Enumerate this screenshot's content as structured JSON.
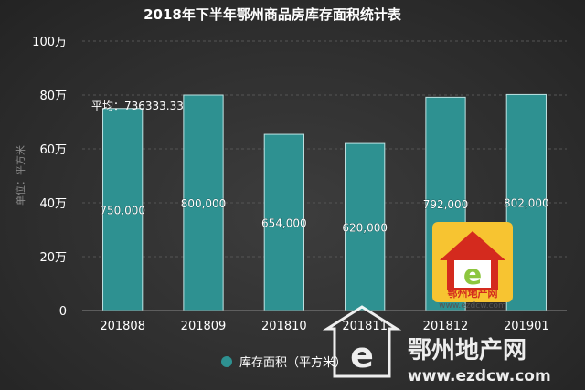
{
  "chart_data": {
    "type": "bar",
    "title": "2018年下半年鄂州商品房库存面积统计表",
    "ylabel": "单位：平方米",
    "categories": [
      "201808",
      "201809",
      "201810",
      "201811",
      "201812",
      "201901"
    ],
    "series": [
      {
        "name": "库存面积（平方米）",
        "values": [
          750000,
          800000,
          654000,
          620000,
          792000,
          802000
        ],
        "data_labels": [
          "750,000",
          "800,000",
          "654,000",
          "620,000",
          "792,000",
          "802,000"
        ]
      }
    ],
    "ylim": [
      0,
      1000000
    ],
    "yticks": [
      0,
      200000,
      400000,
      600000,
      800000,
      1000000
    ],
    "ytick_labels": [
      "0",
      "20万",
      "40万",
      "60万",
      "80万",
      "100万"
    ],
    "average": 736333.33,
    "average_label": "平均：736333.33",
    "grid": true,
    "legend_position": "bottom",
    "colors": {
      "bar": "#2e9191",
      "grid": "#555555",
      "background": "#2f2f2f"
    }
  },
  "watermark": {
    "logo_text": "鄂州地产网",
    "logo_url": "www.ezdcw.com",
    "big_text": "鄂州地产网",
    "big_url": "www.ezdcw.com",
    "logo_icon": "house-e-logo-icon",
    "colors": {
      "logo_red": "#d42a1e",
      "logo_green": "#8dc63f",
      "logo_yellow": "#f7c431"
    }
  }
}
